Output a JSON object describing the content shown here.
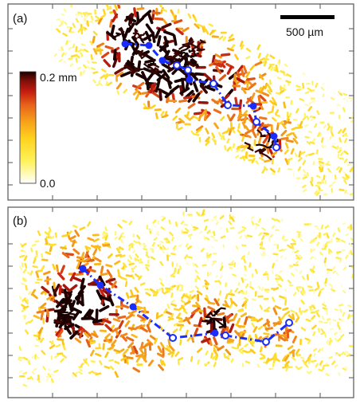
{
  "figure": {
    "panels": [
      {
        "label": "(a)"
      },
      {
        "label": "(b)"
      }
    ],
    "scale_bar": {
      "label": "500 µm"
    },
    "colorbar": {
      "max_label": "0.2 mm",
      "min_label": "0.0",
      "colors": [
        "#ffffff",
        "#fff25a",
        "#ffd21e",
        "#f7a21a",
        "#e8641a",
        "#c51d10",
        "#7e0f07",
        "#1a0000"
      ]
    },
    "path_color": "#1a2dff"
  }
}
